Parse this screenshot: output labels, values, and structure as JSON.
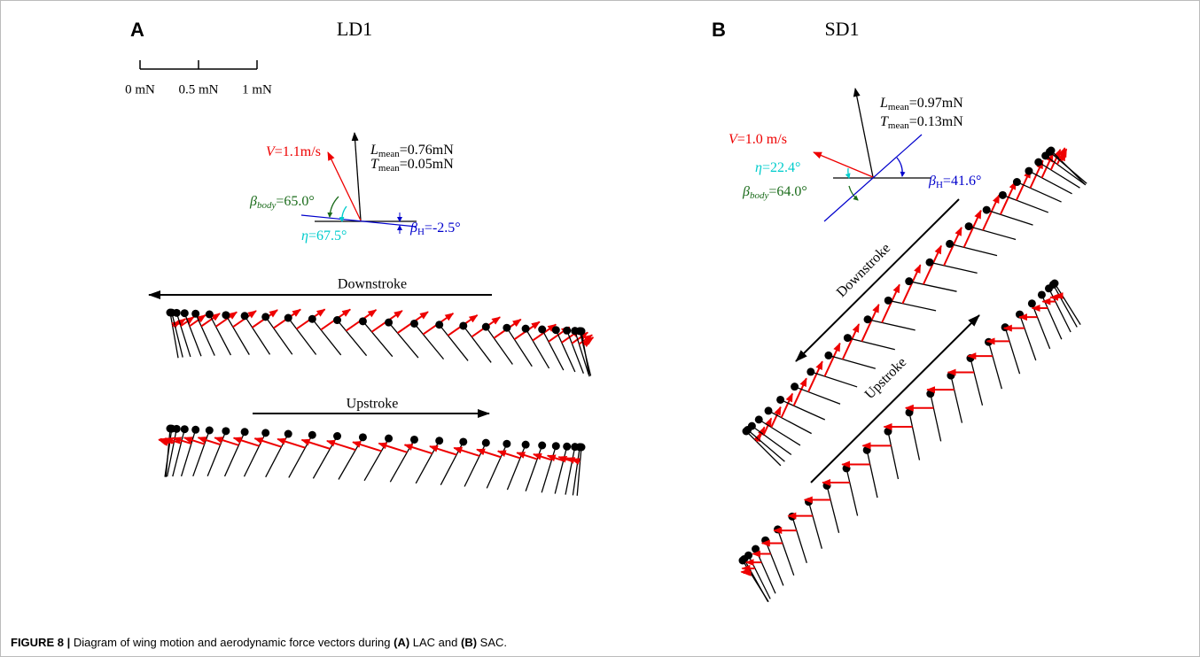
{
  "panel_a": {
    "label": "A",
    "title": "LD1",
    "scale": [
      "0 mN",
      "0.5 mN",
      "1 mN"
    ],
    "velocity": {
      "symbol": "V",
      "text": "=1.1m/s"
    },
    "lift": {
      "symbol": "L",
      "subscript": "mean",
      "text": "=0.76mN"
    },
    "thrust": {
      "symbol": "T",
      "subscript": "mean",
      "text": "=0.05mN"
    },
    "beta_body": {
      "symbol": "β",
      "subscript": "body",
      "text": "=65.0°"
    },
    "eta": {
      "symbol": "η",
      "text": "=67.5°"
    },
    "beta_h": {
      "symbol": "β",
      "subscript": "H",
      "text": "=-2.5°"
    },
    "downstroke": "Downstroke",
    "upstroke": "Upstroke"
  },
  "panel_b": {
    "label": "B",
    "title": "SD1",
    "velocity": {
      "symbol": "V",
      "text": "=1.0 m/s"
    },
    "lift": {
      "symbol": "L",
      "subscript": "mean",
      "text": "=0.97mN"
    },
    "thrust": {
      "symbol": "T",
      "subscript": "mean",
      "text": "=0.13mN"
    },
    "beta_body": {
      "symbol": "β",
      "subscript": "body",
      "text": "=64.0°"
    },
    "eta": {
      "symbol": "η",
      "text": "=22.4°"
    },
    "beta_h": {
      "symbol": "β",
      "subscript": "H",
      "text": "=41.6°"
    },
    "downstroke": "Downstroke",
    "upstroke": "Upstroke"
  },
  "caption": {
    "figure": "FIGURE 8 |",
    "parts": [
      "Diagram of wing motion and aerodynamic force vectors during ",
      "(A)",
      " LAC and ",
      "(B)",
      " SAC."
    ]
  }
}
